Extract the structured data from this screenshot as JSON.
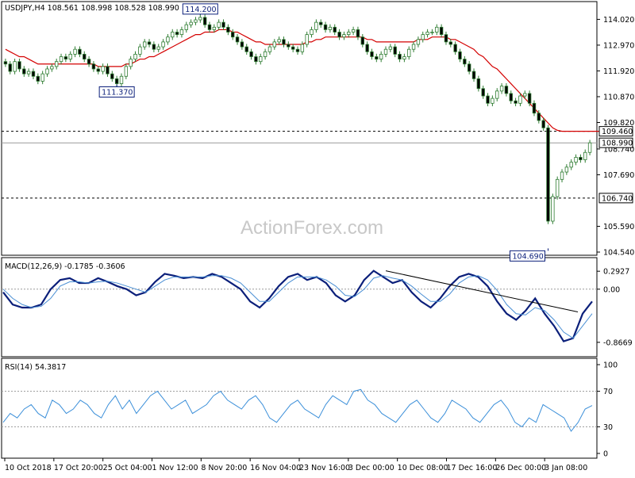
{
  "chart_data": [
    {
      "type": "candlestick",
      "panel": "price",
      "header": "USDJPY,H4  108.561 108.998 108.528 108.990",
      "symbol": "USDJPY",
      "timeframe": "H4",
      "ohlc_last": {
        "open": 108.561,
        "high": 108.998,
        "low": 108.528,
        "close": 108.99
      },
      "y_ticks": [
        "114.020",
        "112.970",
        "111.920",
        "110.870",
        "109.820",
        "108.740",
        "107.690",
        "105.590",
        "104.540"
      ],
      "ylim": [
        104.54,
        114.55
      ],
      "current_price_label": "108.990",
      "horizontal_levels": [
        {
          "value": 109.46,
          "label": "109.460",
          "style": "dashed"
        },
        {
          "value": 108.99,
          "label": "108.990",
          "style": "solid"
        },
        {
          "value": 106.74,
          "label": "106.740",
          "style": "dashed"
        }
      ],
      "annotations": [
        {
          "label": "114.200",
          "value": 114.2,
          "x_index": 42
        },
        {
          "label": "111.370",
          "value": 111.37,
          "x_index": 24
        },
        {
          "label": "104.690",
          "value": 104.69,
          "x_index": 117
        }
      ],
      "close_series": [
        112.2,
        111.9,
        112.3,
        112.0,
        111.8,
        111.9,
        111.7,
        111.5,
        111.8,
        112.0,
        112.1,
        112.3,
        112.5,
        112.4,
        112.6,
        112.8,
        112.6,
        112.4,
        112.2,
        112.0,
        111.9,
        112.1,
        111.8,
        111.6,
        111.4,
        111.7,
        112.1,
        112.4,
        112.6,
        112.9,
        113.1,
        113.0,
        112.8,
        112.9,
        113.1,
        113.3,
        113.5,
        113.4,
        113.6,
        113.8,
        113.9,
        114.0,
        114.1,
        113.8,
        113.6,
        113.7,
        113.9,
        113.7,
        113.5,
        113.3,
        113.1,
        112.9,
        112.7,
        112.5,
        112.3,
        112.5,
        112.7,
        112.9,
        113.1,
        113.2,
        113.0,
        112.9,
        112.8,
        112.7,
        113.0,
        113.4,
        113.6,
        113.9,
        113.8,
        113.6,
        113.7,
        113.5,
        113.3,
        113.4,
        113.5,
        113.6,
        113.3,
        113.0,
        112.7,
        112.5,
        112.4,
        112.6,
        112.8,
        112.9,
        112.6,
        112.4,
        112.5,
        112.8,
        113.0,
        113.2,
        113.4,
        113.5,
        113.5,
        113.7,
        113.4,
        113.1,
        113.0,
        112.7,
        112.4,
        112.2,
        111.9,
        111.6,
        111.2,
        110.9,
        110.6,
        110.8,
        111.1,
        111.3,
        111.0,
        110.7,
        110.6,
        110.9,
        111.0,
        110.6,
        110.2,
        109.9,
        109.6,
        105.8,
        106.8,
        107.5,
        107.8,
        108.0,
        108.2,
        108.4,
        108.3,
        108.6,
        108.99
      ],
      "ma_series": [
        112.8,
        112.7,
        112.6,
        112.5,
        112.5,
        112.4,
        112.3,
        112.2,
        112.2,
        112.2,
        112.2,
        112.2,
        112.2,
        112.2,
        112.2,
        112.2,
        112.2,
        112.2,
        112.2,
        112.2,
        112.1,
        112.1,
        112.1,
        112.1,
        112.1,
        112.1,
        112.2,
        112.2,
        112.3,
        112.4,
        112.4,
        112.5,
        112.5,
        112.6,
        112.7,
        112.8,
        112.9,
        113.0,
        113.1,
        113.2,
        113.3,
        113.4,
        113.4,
        113.5,
        113.5,
        113.5,
        113.6,
        113.6,
        113.6,
        113.5,
        113.5,
        113.4,
        113.3,
        113.2,
        113.1,
        113.1,
        113.0,
        113.0,
        113.0,
        113.0,
        113.0,
        113.0,
        113.0,
        113.0,
        113.0,
        113.1,
        113.1,
        113.2,
        113.2,
        113.3,
        113.3,
        113.3,
        113.3,
        113.3,
        113.3,
        113.3,
        113.3,
        113.3,
        113.2,
        113.2,
        113.1,
        113.1,
        113.1,
        113.1,
        113.1,
        113.1,
        113.1,
        113.1,
        113.1,
        113.2,
        113.2,
        113.2,
        113.3,
        113.3,
        113.3,
        113.3,
        113.2,
        113.2,
        113.1,
        113.0,
        112.9,
        112.8,
        112.6,
        112.5,
        112.3,
        112.1,
        112.0,
        111.8,
        111.6,
        111.4,
        111.2,
        111.0,
        110.8,
        110.6,
        110.4,
        110.2,
        110.0,
        109.8,
        109.6,
        109.5,
        109.46,
        109.46,
        109.46,
        109.46,
        109.46,
        109.46,
        109.46,
        109.46,
        109.46
      ],
      "ma_color": "#d40000",
      "candle_color": "#2f7d32"
    },
    {
      "type": "line",
      "panel": "macd",
      "header": "MACD(12,26,9) -0.1785 -0.3606",
      "y_ticks": [
        "0.2927",
        "0.00",
        "-0.8669"
      ],
      "ylim": [
        -1.05,
        0.45
      ],
      "series": [
        {
          "name": "MACD",
          "color": "#0b1f7a",
          "values": [
            -0.05,
            -0.25,
            -0.3,
            -0.3,
            -0.25,
            0.0,
            0.15,
            0.18,
            0.1,
            0.1,
            0.18,
            0.12,
            0.05,
            0.0,
            -0.1,
            -0.05,
            0.12,
            0.25,
            0.22,
            0.18,
            0.2,
            0.18,
            0.25,
            0.2,
            0.1,
            0.0,
            -0.2,
            -0.3,
            -0.15,
            0.05,
            0.2,
            0.25,
            0.15,
            0.2,
            0.1,
            -0.1,
            -0.2,
            -0.1,
            0.15,
            0.3,
            0.2,
            0.1,
            0.15,
            -0.05,
            -0.2,
            -0.3,
            -0.15,
            0.05,
            0.2,
            0.25,
            0.2,
            0.05,
            -0.2,
            -0.4,
            -0.5,
            -0.35,
            -0.15,
            -0.4,
            -0.6,
            -0.85,
            -0.8,
            -0.4,
            -0.2
          ]
        },
        {
          "name": "Signal",
          "color": "#4a8fd4",
          "values": [
            0.0,
            -0.15,
            -0.25,
            -0.3,
            -0.28,
            -0.15,
            0.05,
            0.12,
            0.12,
            0.1,
            0.12,
            0.13,
            0.1,
            0.05,
            0.0,
            -0.05,
            0.05,
            0.15,
            0.2,
            0.2,
            0.2,
            0.2,
            0.22,
            0.22,
            0.18,
            0.1,
            -0.05,
            -0.2,
            -0.2,
            -0.05,
            0.1,
            0.2,
            0.2,
            0.2,
            0.15,
            0.05,
            -0.1,
            -0.12,
            0.0,
            0.18,
            0.22,
            0.18,
            0.15,
            0.05,
            -0.08,
            -0.2,
            -0.2,
            -0.08,
            0.1,
            0.2,
            0.22,
            0.15,
            -0.02,
            -0.25,
            -0.4,
            -0.42,
            -0.3,
            -0.35,
            -0.5,
            -0.7,
            -0.8,
            -0.6,
            -0.4
          ]
        }
      ],
      "trendline": {
        "from": {
          "x_index": 82,
          "value": 0.3
        },
        "to": {
          "x_index": 120,
          "value": -0.32
        }
      },
      "zero_line": 0.0
    },
    {
      "type": "line",
      "panel": "rsi",
      "header": "RSI(14) 54.3817",
      "y_ticks": [
        "100",
        "70",
        "30",
        "0"
      ],
      "ylim": [
        0,
        100
      ],
      "levels": [
        70,
        30
      ],
      "series": [
        {
          "name": "RSI",
          "color": "#3b8fd9",
          "values": [
            35,
            45,
            40,
            50,
            55,
            45,
            40,
            60,
            55,
            45,
            50,
            60,
            55,
            45,
            40,
            55,
            65,
            50,
            60,
            45,
            55,
            65,
            70,
            60,
            50,
            55,
            60,
            45,
            50,
            55,
            65,
            70,
            60,
            55,
            50,
            60,
            65,
            55,
            40,
            35,
            45,
            55,
            60,
            50,
            45,
            40,
            55,
            65,
            60,
            55,
            70,
            72,
            60,
            55,
            45,
            40,
            35,
            45,
            55,
            60,
            50,
            40,
            35,
            45,
            60,
            55,
            50,
            40,
            35,
            45,
            55,
            60,
            50,
            35,
            30,
            40,
            35,
            55,
            50,
            45,
            40,
            25,
            35,
            50,
            54
          ]
        }
      ]
    }
  ],
  "x_axis": {
    "tick_labels": [
      "10 Oct 2018",
      "17 Oct 20:00",
      "25 Oct 04:00",
      "1 Nov 12:00",
      "8 Nov 20:00",
      "16 Nov 04:00",
      "23 Nov 16:00",
      "3 Dec 00:00",
      "10 Dec 08:00",
      "17 Dec 16:00",
      "26 Dec 00:00",
      "3 Jan 08:00"
    ]
  },
  "watermark": "ActionForex.com"
}
